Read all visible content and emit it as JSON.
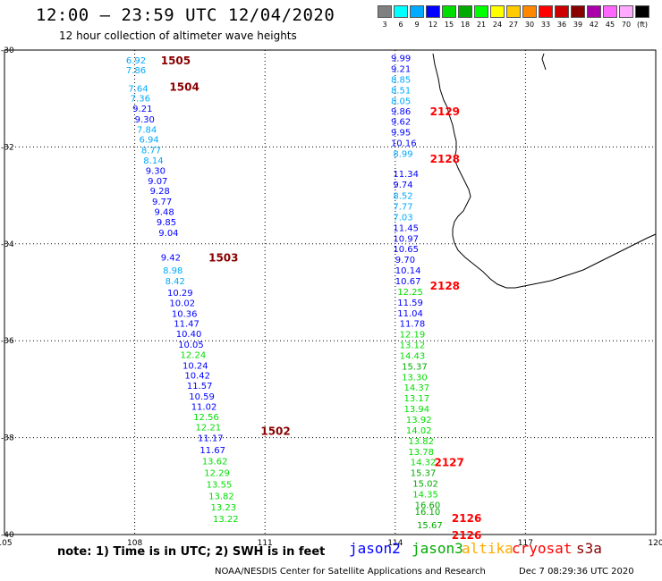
{
  "title": "12:00 – 23:59 UTC 12/04/2020",
  "subtitle": "12 hour collection of altimeter wave heights",
  "scale": {
    "colors": [
      "#808080",
      "#00ffff",
      "#00aaff",
      "#0000ff",
      "#00dd00",
      "#00aa00",
      "#00ff00",
      "#ffff00",
      "#ffcc00",
      "#ff8800",
      "#ff0000",
      "#cc0000",
      "#880000",
      "#aa00aa",
      "#ff66ff",
      "#ffaaff",
      "#000000"
    ],
    "labels": [
      "3",
      "6",
      "9",
      "12",
      "15",
      "18",
      "21",
      "24",
      "27",
      "30",
      "33",
      "36",
      "39",
      "42",
      "45",
      "70",
      "(ft)"
    ]
  },
  "note": "note:  1) Time is in UTC;  2) SWH is in feet",
  "legend": [
    {
      "label": "jason2",
      "color": "#0000ff"
    },
    {
      "label": "jason3",
      "color": "#00aa00"
    },
    {
      "label": "altika",
      "color": "#ffaa00"
    },
    {
      "label": "cryosat",
      "color": "#ff0000"
    },
    {
      "label": "s3a",
      "color": "#880000"
    }
  ],
  "credit": "NOAA/NESDIS Center for Satellite Applications and Research",
  "timestamp": "Dec  7 08:29:36 UTC 2020",
  "map": {
    "lon_ticks": [
      105,
      108,
      111,
      114,
      117,
      120
    ],
    "lat_ticks": [
      -30,
      -32,
      -34,
      -36,
      -38,
      -40
    ],
    "lon_range": [
      105,
      120
    ],
    "lat_range": [
      -40,
      -30
    ],
    "tracks": [
      {
        "label": "1505",
        "color": "#880000",
        "lat": -30.2,
        "lon": 108.6
      },
      {
        "label": "1504",
        "color": "#880000",
        "lat": -30.75,
        "lon": 108.8
      },
      {
        "label": "1503",
        "color": "#880000",
        "lat": -34.27,
        "lon": 109.7
      },
      {
        "label": "1502",
        "color": "#880000",
        "lat": -37.85,
        "lon": 110.9
      },
      {
        "label": "2129",
        "color": "#ff0000",
        "lat": -31.25,
        "lon": 114.8
      },
      {
        "label": "2128",
        "color": "#ff0000",
        "lat": -32.23,
        "lon": 114.8
      },
      {
        "label": "2128",
        "color": "#ff0000",
        "lat": -34.85,
        "lon": 114.8
      },
      {
        "label": "2127",
        "color": "#ff0000",
        "lat": -38.5,
        "lon": 114.9
      },
      {
        "label": "2126",
        "color": "#ff0000",
        "lat": -39.65,
        "lon": 115.3
      },
      {
        "label": "2126",
        "color": "#ff0000",
        "lat": -40.0,
        "lon": 115.3
      }
    ],
    "obs": [
      {
        "v": "6.92",
        "lat": -30.2,
        "lon": 107.8,
        "c": "#00aaff"
      },
      {
        "v": "7.86",
        "lat": -30.41,
        "lon": 107.8,
        "c": "#00aaff"
      },
      {
        "v": "7.64",
        "lat": -30.78,
        "lon": 107.85,
        "c": "#00aaff"
      },
      {
        "v": "7.36",
        "lat": -30.99,
        "lon": 107.9,
        "c": "#00aaff"
      },
      {
        "v": "9.21",
        "lat": -31.2,
        "lon": 107.95,
        "c": "#0000ff"
      },
      {
        "v": "9.30",
        "lat": -31.42,
        "lon": 108.0,
        "c": "#0000ff"
      },
      {
        "v": "7.84",
        "lat": -31.63,
        "lon": 108.05,
        "c": "#00aaff"
      },
      {
        "v": "6.94",
        "lat": -31.84,
        "lon": 108.1,
        "c": "#00aaff"
      },
      {
        "v": "8.77",
        "lat": -32.06,
        "lon": 108.15,
        "c": "#00aaff"
      },
      {
        "v": "8.14",
        "lat": -32.27,
        "lon": 108.2,
        "c": "#00aaff"
      },
      {
        "v": "9.30",
        "lat": -32.48,
        "lon": 108.25,
        "c": "#0000ff"
      },
      {
        "v": "9.07",
        "lat": -32.69,
        "lon": 108.3,
        "c": "#0000ff"
      },
      {
        "v": "9.28",
        "lat": -32.9,
        "lon": 108.35,
        "c": "#0000ff"
      },
      {
        "v": "9.77",
        "lat": -33.12,
        "lon": 108.4,
        "c": "#0000ff"
      },
      {
        "v": "9.48",
        "lat": -33.33,
        "lon": 108.45,
        "c": "#0000ff"
      },
      {
        "v": "9.85",
        "lat": -33.54,
        "lon": 108.5,
        "c": "#0000ff"
      },
      {
        "v": "9.04",
        "lat": -33.76,
        "lon": 108.55,
        "c": "#0000ff"
      },
      {
        "v": "9.42",
        "lat": -34.27,
        "lon": 108.6,
        "c": "#0000ff"
      },
      {
        "v": "8.98",
        "lat": -34.54,
        "lon": 108.65,
        "c": "#00aaff"
      },
      {
        "v": "8.42",
        "lat": -34.76,
        "lon": 108.7,
        "c": "#00aaff"
      },
      {
        "v": "10.29",
        "lat": -35.0,
        "lon": 108.75,
        "c": "#0000ff"
      },
      {
        "v": "10.02",
        "lat": -35.21,
        "lon": 108.8,
        "c": "#0000ff"
      },
      {
        "v": "10.36",
        "lat": -35.43,
        "lon": 108.85,
        "c": "#0000ff"
      },
      {
        "v": "11.47",
        "lat": -35.64,
        "lon": 108.9,
        "c": "#0000ff"
      },
      {
        "v": "10.40",
        "lat": -35.85,
        "lon": 108.95,
        "c": "#0000ff"
      },
      {
        "v": "10.05",
        "lat": -36.07,
        "lon": 109.0,
        "c": "#0000ff"
      },
      {
        "v": "12.24",
        "lat": -36.28,
        "lon": 109.05,
        "c": "#00dd00"
      },
      {
        "v": "10.24",
        "lat": -36.5,
        "lon": 109.1,
        "c": "#0000ff"
      },
      {
        "v": "10.42",
        "lat": -36.71,
        "lon": 109.15,
        "c": "#0000ff"
      },
      {
        "v": "11.57",
        "lat": -36.92,
        "lon": 109.2,
        "c": "#0000ff"
      },
      {
        "v": "10.59",
        "lat": -37.14,
        "lon": 109.25,
        "c": "#0000ff"
      },
      {
        "v": "11.02",
        "lat": -37.35,
        "lon": 109.3,
        "c": "#0000ff"
      },
      {
        "v": "12.56",
        "lat": -37.56,
        "lon": 109.35,
        "c": "#00dd00"
      },
      {
        "v": "12.21",
        "lat": -37.78,
        "lon": 109.4,
        "c": "#00dd00"
      },
      {
        "v": "11.17",
        "lat": -38.0,
        "lon": 109.45,
        "c": "#0000ff"
      },
      {
        "v": "11.67",
        "lat": -38.25,
        "lon": 109.5,
        "c": "#0000ff"
      },
      {
        "v": "13.62",
        "lat": -38.48,
        "lon": 109.55,
        "c": "#00dd00"
      },
      {
        "v": "12.29",
        "lat": -38.72,
        "lon": 109.6,
        "c": "#00dd00"
      },
      {
        "v": "13.55",
        "lat": -38.96,
        "lon": 109.65,
        "c": "#00dd00"
      },
      {
        "v": "13.82",
        "lat": -39.2,
        "lon": 109.7,
        "c": "#00dd00"
      },
      {
        "v": "13.23",
        "lat": -39.43,
        "lon": 109.75,
        "c": "#00dd00"
      },
      {
        "v": "13.22",
        "lat": -39.67,
        "lon": 109.8,
        "c": "#00dd00"
      },
      {
        "v": "9.99",
        "lat": -30.16,
        "lon": 113.9,
        "c": "#0000ff"
      },
      {
        "v": "9.21",
        "lat": -30.38,
        "lon": 113.9,
        "c": "#0000ff"
      },
      {
        "v": "8.85",
        "lat": -30.6,
        "lon": 113.9,
        "c": "#00aaff"
      },
      {
        "v": "8.51",
        "lat": -30.82,
        "lon": 113.9,
        "c": "#00aaff"
      },
      {
        "v": "8.05",
        "lat": -31.04,
        "lon": 113.9,
        "c": "#00aaff"
      },
      {
        "v": "9.86",
        "lat": -31.25,
        "lon": 113.9,
        "c": "#0000ff"
      },
      {
        "v": "9.62",
        "lat": -31.47,
        "lon": 113.9,
        "c": "#0000ff"
      },
      {
        "v": "9.95",
        "lat": -31.69,
        "lon": 113.9,
        "c": "#0000ff"
      },
      {
        "v": "10.16",
        "lat": -31.91,
        "lon": 113.9,
        "c": "#0000ff"
      },
      {
        "v": "8.99",
        "lat": -32.13,
        "lon": 113.95,
        "c": "#00aaff"
      },
      {
        "v": "11.34",
        "lat": -32.55,
        "lon": 113.95,
        "c": "#0000ff"
      },
      {
        "v": "9.74",
        "lat": -32.77,
        "lon": 113.95,
        "c": "#0000ff"
      },
      {
        "v": "8.52",
        "lat": -33.0,
        "lon": 113.95,
        "c": "#00aaff"
      },
      {
        "v": "7.77",
        "lat": -33.22,
        "lon": 113.95,
        "c": "#00aaff"
      },
      {
        "v": "7.03",
        "lat": -33.44,
        "lon": 113.95,
        "c": "#00aaff"
      },
      {
        "v": "11.45",
        "lat": -33.66,
        "lon": 113.95,
        "c": "#0000ff"
      },
      {
        "v": "10.97",
        "lat": -33.88,
        "lon": 113.95,
        "c": "#0000ff"
      },
      {
        "v": "10.65",
        "lat": -34.1,
        "lon": 113.95,
        "c": "#0000ff"
      },
      {
        "v": "9.70",
        "lat": -34.32,
        "lon": 114.0,
        "c": "#0000ff"
      },
      {
        "v": "10.14",
        "lat": -34.54,
        "lon": 114.0,
        "c": "#0000ff"
      },
      {
        "v": "10.67",
        "lat": -34.76,
        "lon": 114.0,
        "c": "#0000ff"
      },
      {
        "v": "12.25",
        "lat": -34.98,
        "lon": 114.05,
        "c": "#00dd00"
      },
      {
        "v": "11.59",
        "lat": -35.2,
        "lon": 114.05,
        "c": "#0000ff"
      },
      {
        "v": "11.04",
        "lat": -35.42,
        "lon": 114.05,
        "c": "#0000ff"
      },
      {
        "v": "11.78",
        "lat": -35.64,
        "lon": 114.1,
        "c": "#0000ff"
      },
      {
        "v": "12.19",
        "lat": -35.86,
        "lon": 114.1,
        "c": "#00dd00"
      },
      {
        "v": "13.12",
        "lat": -36.08,
        "lon": 114.1,
        "c": "#00dd00"
      },
      {
        "v": "14.43",
        "lat": -36.3,
        "lon": 114.1,
        "c": "#00dd00"
      },
      {
        "v": "15.37",
        "lat": -36.52,
        "lon": 114.15,
        "c": "#00aa00"
      },
      {
        "v": "13.30",
        "lat": -36.74,
        "lon": 114.15,
        "c": "#00dd00"
      },
      {
        "v": "14.37",
        "lat": -36.96,
        "lon": 114.2,
        "c": "#00dd00"
      },
      {
        "v": "13.17",
        "lat": -37.18,
        "lon": 114.2,
        "c": "#00dd00"
      },
      {
        "v": "13.94",
        "lat": -37.4,
        "lon": 114.2,
        "c": "#00dd00"
      },
      {
        "v": "13.92",
        "lat": -37.62,
        "lon": 114.25,
        "c": "#00dd00"
      },
      {
        "v": "14.02",
        "lat": -37.84,
        "lon": 114.25,
        "c": "#00dd00"
      },
      {
        "v": "13.82",
        "lat": -38.06,
        "lon": 114.3,
        "c": "#00dd00"
      },
      {
        "v": "13.78",
        "lat": -38.28,
        "lon": 114.3,
        "c": "#00dd00"
      },
      {
        "v": "14.32",
        "lat": -38.5,
        "lon": 114.35,
        "c": "#00dd00"
      },
      {
        "v": "15.37",
        "lat": -38.72,
        "lon": 114.35,
        "c": "#00aa00"
      },
      {
        "v": "15.02",
        "lat": -38.94,
        "lon": 114.4,
        "c": "#00aa00"
      },
      {
        "v": "14.35",
        "lat": -39.16,
        "lon": 114.4,
        "c": "#00dd00"
      },
      {
        "v": "16.60",
        "lat": -39.38,
        "lon": 114.45,
        "c": "#00aa00"
      },
      {
        "v": "16.10",
        "lat": -39.52,
        "lon": 114.45,
        "c": "#00aa00"
      },
      {
        "v": "15.67",
        "lat": -39.8,
        "lon": 114.5,
        "c": "#00aa00"
      }
    ]
  }
}
